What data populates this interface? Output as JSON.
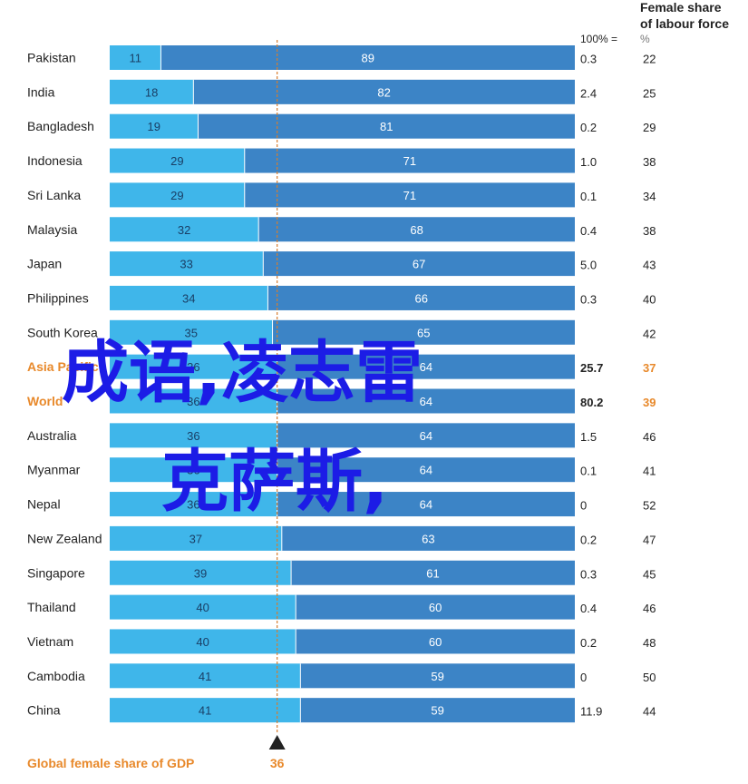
{
  "chart_data": {
    "type": "bar",
    "orientation": "horizontal",
    "stacked": true,
    "categories": [
      "Pakistan",
      "India",
      "Bangladesh",
      "Indonesia",
      "Sri Lanka",
      "Malaysia",
      "Japan",
      "Philippines",
      "South Korea",
      "Asia Pacific",
      "World",
      "Australia",
      "Myanmar",
      "Nepal",
      "New Zealand",
      "Singapore",
      "Thailand",
      "Vietnam",
      "Cambodia",
      "China"
    ],
    "highlighted": [
      "Asia Pacific",
      "World"
    ],
    "series": [
      {
        "values": [
          11,
          18,
          19,
          29,
          29,
          32,
          33,
          34,
          35,
          36,
          36,
          36,
          36,
          36,
          37,
          39,
          40,
          40,
          41,
          41
        ],
        "color": "#3fb6ea"
      },
      {
        "values": [
          89,
          82,
          81,
          71,
          71,
          68,
          67,
          66,
          65,
          64,
          64,
          64,
          64,
          64,
          63,
          61,
          60,
          60,
          59,
          59
        ],
        "color": "#3c84c6"
      }
    ],
    "gdp_share_column": {
      "header": "100% =",
      "values": [
        "0.3",
        "2.4",
        "0.2",
        "1.0",
        "0.1",
        "0.4",
        "5.0",
        "0.3",
        "",
        "25.7",
        "80.2",
        "1.5",
        "0.1",
        "0",
        "0.2",
        "0.3",
        "0.4",
        "0.2",
        "0",
        "11.9"
      ]
    },
    "labour_force_column": {
      "title_line1": "Female share",
      "title_line2": "of labour force",
      "unit": "%",
      "values": [
        "22",
        "25",
        "29",
        "38",
        "34",
        "38",
        "43",
        "40",
        "42",
        "37",
        "39",
        "46",
        "41",
        "52",
        "47",
        "45",
        "46",
        "48",
        "50",
        "44"
      ]
    },
    "reference_line": {
      "value": 36,
      "label": "36"
    },
    "footer_label": "Global female share of GDP",
    "xlim": [
      0,
      100
    ],
    "overlay_text": {
      "line1": "成语,凌志雷",
      "line2": "克萨斯,"
    }
  }
}
